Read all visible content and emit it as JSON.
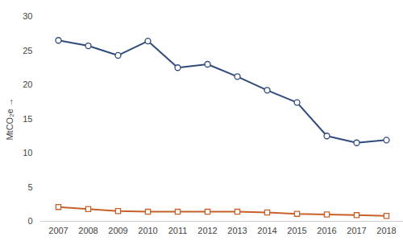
{
  "chart_data": {
    "type": "line",
    "y_label": "MtCO₂e",
    "categories": [
      "2007",
      "2008",
      "2009",
      "2010",
      "2011",
      "2012",
      "2013",
      "2014",
      "2015",
      "2016",
      "2017",
      "2018"
    ],
    "series": [
      {
        "color": "#2f4b7c",
        "marker": "circle",
        "values": [
          26.5,
          25.7,
          24.3,
          26.4,
          22.5,
          23.0,
          21.2,
          19.2,
          17.4,
          12.5,
          11.5,
          11.9
        ]
      },
      {
        "color": "#c8602a",
        "marker": "square",
        "values": [
          2.1,
          1.8,
          1.5,
          1.4,
          1.4,
          1.4,
          1.4,
          1.3,
          1.1,
          1.0,
          0.9,
          0.8
        ]
      }
    ],
    "ylim": [
      0,
      30
    ],
    "yticks": [
      0,
      5,
      10,
      15,
      20,
      25,
      30
    ],
    "grid": false
  }
}
